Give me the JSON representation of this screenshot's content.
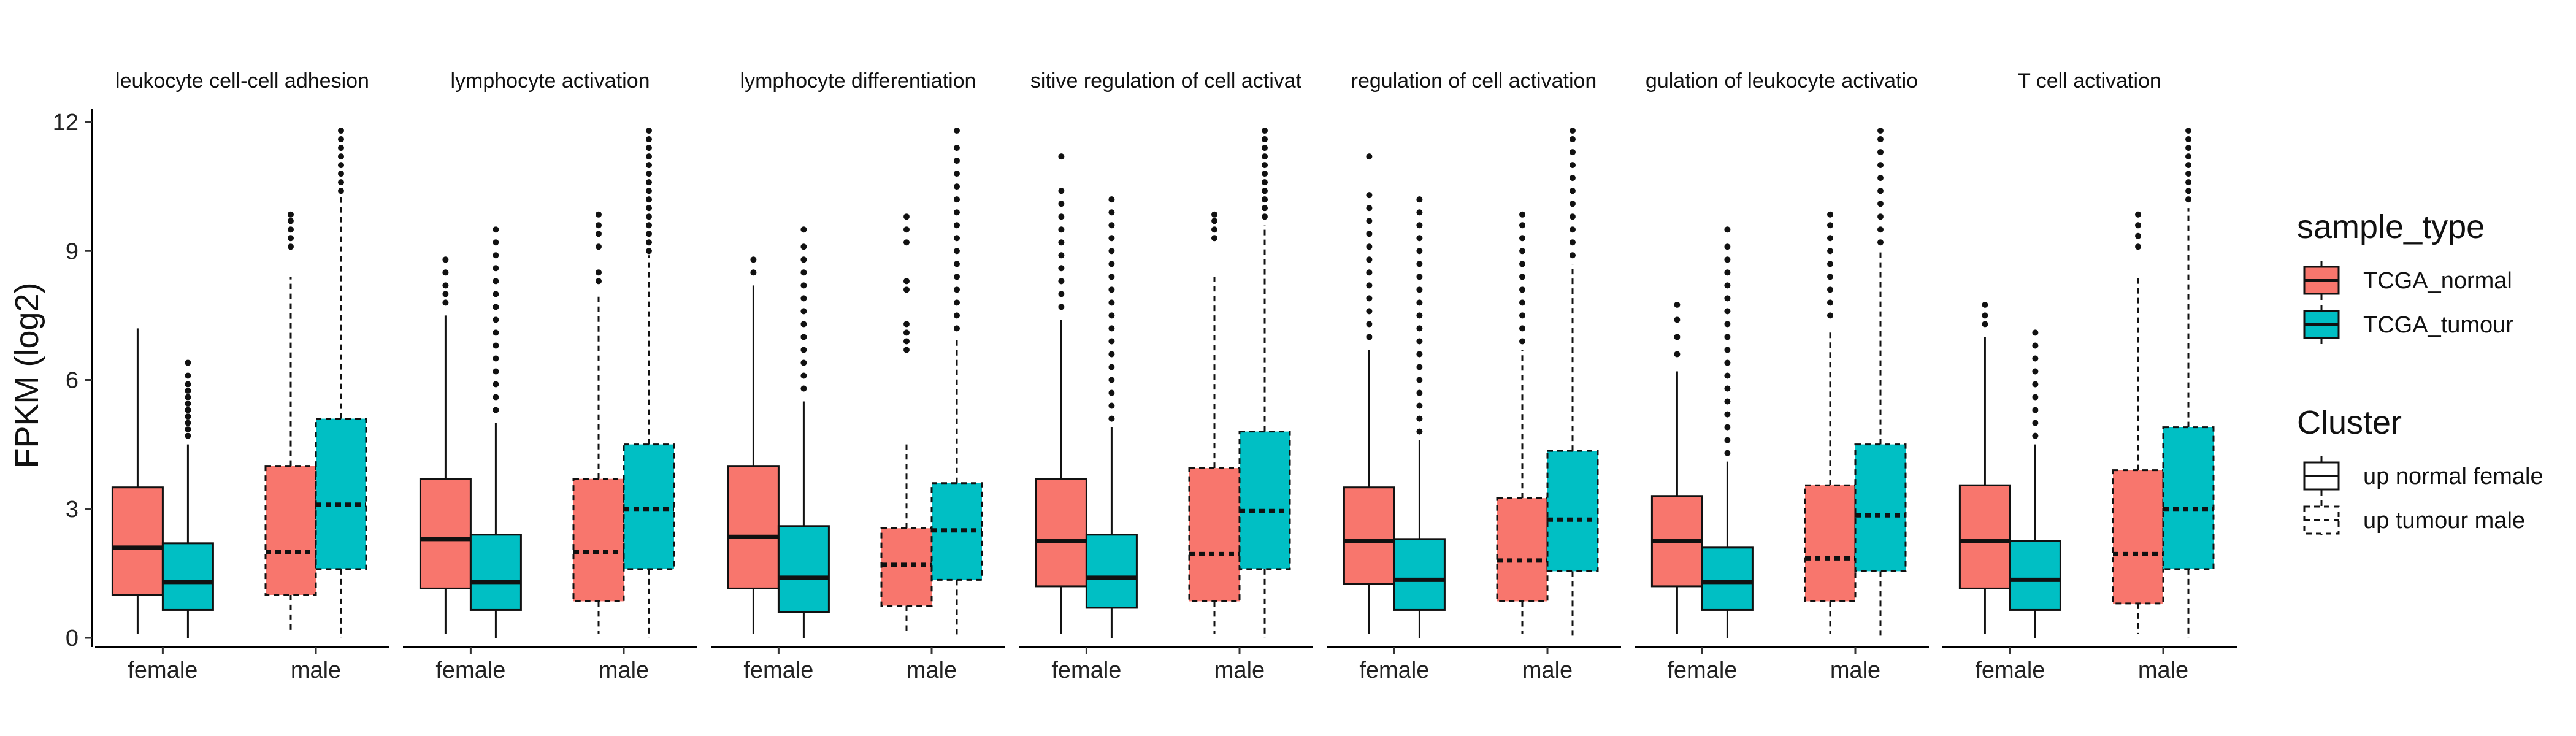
{
  "chart_data": {
    "type": "boxplot",
    "ylabel": "FPKM (log2)",
    "ylim": [
      0,
      12.3
    ],
    "yticks": [
      0,
      3,
      6,
      9,
      12
    ],
    "x_categories": [
      "female",
      "male"
    ],
    "grid": false,
    "legend_position": "right",
    "legends": {
      "sample_type": {
        "title": "sample_type",
        "entries": [
          {
            "name": "TCGA_normal",
            "color": "#F8766D"
          },
          {
            "name": "TCGA_tumour",
            "color": "#00BFC4"
          }
        ]
      },
      "cluster": {
        "title": "Cluster",
        "entries": [
          {
            "name": "up normal female",
            "linetype": "solid"
          },
          {
            "name": "up tumour male",
            "linetype": "dashed"
          }
        ]
      }
    },
    "facets": [
      {
        "title": "leukocyte cell-cell adhesion",
        "boxes": [
          {
            "x": "female",
            "sample_type": "TCGA_normal",
            "cluster": "up normal female",
            "min": 0.1,
            "q1": 1.0,
            "median": 2.1,
            "q3": 3.5,
            "max": 7.2,
            "outliers": []
          },
          {
            "x": "female",
            "sample_type": "TCGA_tumour",
            "cluster": "up normal female",
            "min": 0.0,
            "q1": 0.65,
            "median": 1.3,
            "q3": 2.2,
            "max": 4.5,
            "outliers": [
              4.7,
              4.85,
              5.0,
              5.15,
              5.3,
              5.45,
              5.6,
              5.75,
              5.9,
              6.1,
              6.4
            ]
          },
          {
            "x": "male",
            "sample_type": "TCGA_normal",
            "cluster": "up tumour male",
            "min": 0.1,
            "q1": 1.0,
            "median": 2.0,
            "q3": 4.0,
            "max": 8.4,
            "outliers": [
              9.1,
              9.3,
              9.5,
              9.7,
              9.85
            ]
          },
          {
            "x": "male",
            "sample_type": "TCGA_tumour",
            "cluster": "up tumour male",
            "min": 0.0,
            "q1": 1.6,
            "median": 3.1,
            "q3": 5.1,
            "max": 10.3,
            "outliers": [
              10.4,
              10.6,
              10.8,
              11.0,
              11.2,
              11.4,
              11.6,
              11.8
            ]
          }
        ]
      },
      {
        "title": "lymphocyte activation",
        "boxes": [
          {
            "x": "female",
            "sample_type": "TCGA_normal",
            "cluster": "up normal female",
            "min": 0.1,
            "q1": 1.15,
            "median": 2.3,
            "q3": 3.7,
            "max": 7.5,
            "outliers": [
              7.8,
              8.0,
              8.2,
              8.5,
              8.8
            ]
          },
          {
            "x": "female",
            "sample_type": "TCGA_tumour",
            "cluster": "up normal female",
            "min": 0.0,
            "q1": 0.65,
            "median": 1.3,
            "q3": 2.4,
            "max": 5.0,
            "outliers": [
              5.3,
              5.6,
              5.9,
              6.2,
              6.5,
              6.8,
              7.1,
              7.4,
              7.7,
              8.0,
              8.3,
              8.6,
              8.9,
              9.2,
              9.5
            ]
          },
          {
            "x": "male",
            "sample_type": "TCGA_normal",
            "cluster": "up tumour male",
            "min": 0.1,
            "q1": 0.85,
            "median": 2.0,
            "q3": 3.7,
            "max": 8.0,
            "outliers": [
              8.3,
              8.5,
              9.1,
              9.4,
              9.6,
              9.85
            ]
          },
          {
            "x": "male",
            "sample_type": "TCGA_tumour",
            "cluster": "up tumour male",
            "min": 0.0,
            "q1": 1.6,
            "median": 3.0,
            "q3": 4.5,
            "max": 8.9,
            "outliers": [
              9.0,
              9.2,
              9.4,
              9.6,
              9.8,
              10.0,
              10.2,
              10.4,
              10.6,
              10.8,
              11.0,
              11.2,
              11.4,
              11.6,
              11.8
            ]
          }
        ]
      },
      {
        "title": "lymphocyte differentiation",
        "boxes": [
          {
            "x": "female",
            "sample_type": "TCGA_normal",
            "cluster": "up normal female",
            "min": 0.1,
            "q1": 1.15,
            "median": 2.35,
            "q3": 4.0,
            "max": 8.2,
            "outliers": [
              8.5,
              8.8
            ]
          },
          {
            "x": "female",
            "sample_type": "TCGA_tumour",
            "cluster": "up normal female",
            "min": 0.0,
            "q1": 0.6,
            "median": 1.4,
            "q3": 2.6,
            "max": 5.5,
            "outliers": [
              5.8,
              6.1,
              6.4,
              6.7,
              7.0,
              7.3,
              7.6,
              7.9,
              8.2,
              8.5,
              8.8,
              9.1,
              9.5
            ]
          },
          {
            "x": "male",
            "sample_type": "TCGA_normal",
            "cluster": "up tumour male",
            "min": 0.1,
            "q1": 0.75,
            "median": 1.7,
            "q3": 2.55,
            "max": 4.5,
            "outliers": [
              6.7,
              6.9,
              7.1,
              7.3,
              8.1,
              8.3,
              9.2,
              9.5,
              9.8
            ]
          },
          {
            "x": "male",
            "sample_type": "TCGA_tumour",
            "cluster": "up tumour male",
            "min": 0.0,
            "q1": 1.35,
            "median": 2.5,
            "q3": 3.6,
            "max": 7.0,
            "outliers": [
              7.2,
              7.5,
              7.8,
              8.1,
              8.4,
              8.7,
              9.0,
              9.3,
              9.6,
              9.9,
              10.2,
              10.5,
              10.8,
              11.1,
              11.4,
              11.8
            ]
          }
        ]
      },
      {
        "title": "sitive regulation of cell activat",
        "boxes": [
          {
            "x": "female",
            "sample_type": "TCGA_normal",
            "cluster": "up normal female",
            "min": 0.1,
            "q1": 1.2,
            "median": 2.25,
            "q3": 3.7,
            "max": 7.4,
            "outliers": [
              7.7,
              8.0,
              8.3,
              8.6,
              8.9,
              9.2,
              9.5,
              9.8,
              10.1,
              10.4,
              11.2
            ]
          },
          {
            "x": "female",
            "sample_type": "TCGA_tumour",
            "cluster": "up normal female",
            "min": 0.0,
            "q1": 0.7,
            "median": 1.4,
            "q3": 2.4,
            "max": 4.9,
            "outliers": [
              5.1,
              5.4,
              5.7,
              6.0,
              6.3,
              6.6,
              6.9,
              7.2,
              7.5,
              7.8,
              8.1,
              8.4,
              8.7,
              9.0,
              9.3,
              9.6,
              9.9,
              10.2
            ]
          },
          {
            "x": "male",
            "sample_type": "TCGA_normal",
            "cluster": "up tumour male",
            "min": 0.1,
            "q1": 0.85,
            "median": 1.95,
            "q3": 3.95,
            "max": 8.4,
            "outliers": [
              9.3,
              9.5,
              9.7,
              9.85
            ]
          },
          {
            "x": "male",
            "sample_type": "TCGA_tumour",
            "cluster": "up tumour male",
            "min": 0.0,
            "q1": 1.6,
            "median": 2.95,
            "q3": 4.8,
            "max": 9.6,
            "outliers": [
              9.8,
              10.0,
              10.2,
              10.4,
              10.6,
              10.8,
              11.0,
              11.2,
              11.4,
              11.6,
              11.8
            ]
          }
        ]
      },
      {
        "title": "regulation of cell activation",
        "boxes": [
          {
            "x": "female",
            "sample_type": "TCGA_normal",
            "cluster": "up normal female",
            "min": 0.1,
            "q1": 1.25,
            "median": 2.25,
            "q3": 3.5,
            "max": 6.7,
            "outliers": [
              7.0,
              7.3,
              7.6,
              7.9,
              8.2,
              8.5,
              8.8,
              9.1,
              9.4,
              9.7,
              10.0,
              10.3,
              11.2
            ]
          },
          {
            "x": "female",
            "sample_type": "TCGA_tumour",
            "cluster": "up normal female",
            "min": 0.0,
            "q1": 0.65,
            "median": 1.35,
            "q3": 2.3,
            "max": 4.6,
            "outliers": [
              4.8,
              5.1,
              5.4,
              5.7,
              6.0,
              6.3,
              6.6,
              6.9,
              7.2,
              7.5,
              7.8,
              8.1,
              8.4,
              8.7,
              9.0,
              9.3,
              9.6,
              9.9,
              10.2
            ]
          },
          {
            "x": "male",
            "sample_type": "TCGA_normal",
            "cluster": "up tumour male",
            "min": 0.1,
            "q1": 0.85,
            "median": 1.8,
            "q3": 3.25,
            "max": 6.7,
            "outliers": [
              6.9,
              7.2,
              7.5,
              7.8,
              8.1,
              8.4,
              8.7,
              9.0,
              9.3,
              9.6,
              9.85
            ]
          },
          {
            "x": "male",
            "sample_type": "TCGA_tumour",
            "cluster": "up tumour male",
            "min": 0.0,
            "q1": 1.55,
            "median": 2.75,
            "q3": 4.35,
            "max": 8.7,
            "outliers": [
              8.9,
              9.2,
              9.5,
              9.8,
              10.1,
              10.4,
              10.7,
              11.0,
              11.3,
              11.6,
              11.8
            ]
          }
        ]
      },
      {
        "title": "gulation of leukocyte activatio",
        "boxes": [
          {
            "x": "female",
            "sample_type": "TCGA_normal",
            "cluster": "up normal female",
            "min": 0.1,
            "q1": 1.2,
            "median": 2.25,
            "q3": 3.3,
            "max": 6.2,
            "outliers": [
              6.6,
              7.0,
              7.4,
              7.75
            ]
          },
          {
            "x": "female",
            "sample_type": "TCGA_tumour",
            "cluster": "up normal female",
            "min": 0.0,
            "q1": 0.65,
            "median": 1.3,
            "q3": 2.1,
            "max": 4.1,
            "outliers": [
              4.3,
              4.6,
              4.9,
              5.2,
              5.5,
              5.8,
              6.1,
              6.4,
              6.7,
              7.0,
              7.3,
              7.6,
              7.9,
              8.2,
              8.5,
              8.8,
              9.1,
              9.5
            ]
          },
          {
            "x": "male",
            "sample_type": "TCGA_normal",
            "cluster": "up tumour male",
            "min": 0.1,
            "q1": 0.85,
            "median": 1.85,
            "q3": 3.55,
            "max": 7.2,
            "outliers": [
              7.5,
              7.8,
              8.1,
              8.4,
              8.7,
              9.0,
              9.3,
              9.6,
              9.85
            ]
          },
          {
            "x": "male",
            "sample_type": "TCGA_tumour",
            "cluster": "up tumour male",
            "min": 0.0,
            "q1": 1.55,
            "median": 2.85,
            "q3": 4.5,
            "max": 9.0,
            "outliers": [
              9.2,
              9.5,
              9.8,
              10.1,
              10.4,
              10.7,
              11.0,
              11.3,
              11.6,
              11.8
            ]
          }
        ]
      },
      {
        "title": "T cell activation",
        "boxes": [
          {
            "x": "female",
            "sample_type": "TCGA_normal",
            "cluster": "up normal female",
            "min": 0.1,
            "q1": 1.15,
            "median": 2.25,
            "q3": 3.55,
            "max": 7.0,
            "outliers": [
              7.3,
              7.5,
              7.75
            ]
          },
          {
            "x": "female",
            "sample_type": "TCGA_tumour",
            "cluster": "up normal female",
            "min": 0.0,
            "q1": 0.65,
            "median": 1.35,
            "q3": 2.25,
            "max": 4.5,
            "outliers": [
              4.7,
              5.0,
              5.3,
              5.6,
              5.9,
              6.2,
              6.5,
              6.8,
              7.1
            ]
          },
          {
            "x": "male",
            "sample_type": "TCGA_normal",
            "cluster": "up tumour male",
            "min": 0.1,
            "q1": 0.8,
            "median": 1.95,
            "q3": 3.9,
            "max": 8.4,
            "outliers": [
              9.1,
              9.35,
              9.6,
              9.85
            ]
          },
          {
            "x": "male",
            "sample_type": "TCGA_tumour",
            "cluster": "up tumour male",
            "min": 0.0,
            "q1": 1.6,
            "median": 3.0,
            "q3": 4.9,
            "max": 10.0,
            "outliers": [
              10.2,
              10.4,
              10.6,
              10.8,
              11.0,
              11.2,
              11.4,
              11.6,
              11.8
            ]
          }
        ]
      }
    ]
  }
}
